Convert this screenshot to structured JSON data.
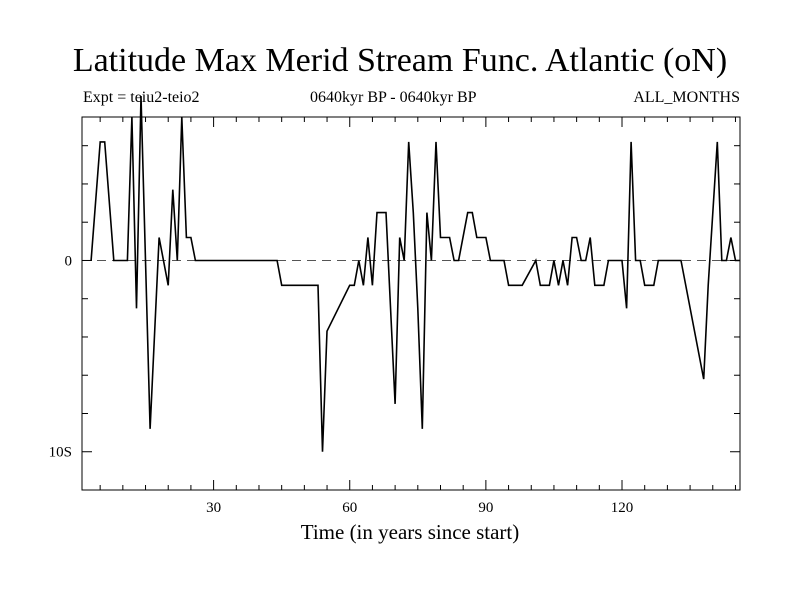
{
  "header": {
    "title": "Latitude Max Merid Stream Func. Atlantic (oN)",
    "expt": "Expt = teiu2-teio2",
    "period": "0640kyr BP - 0640kyr BP",
    "months": "ALL_MONTHS"
  },
  "chart_data": {
    "type": "line",
    "title": "Latitude Max Merid Stream Func. Atlantic (oN)",
    "subtitles": [
      "Expt = teiu2-teio2",
      "0640kyr BP - 0640kyr BP",
      "ALL_MONTHS"
    ],
    "xlabel": "Time (in years since start)",
    "ylabel": "",
    "xlim": [
      1,
      146
    ],
    "ylim": [
      -12,
      7.5
    ],
    "x_ticks": [
      30,
      60,
      90,
      120
    ],
    "x_tick_labels": [
      "30",
      "60",
      "90",
      "120"
    ],
    "y_ticks": [
      0,
      -10
    ],
    "y_tick_labels": [
      "0",
      "10S"
    ],
    "zero_line": "dashed",
    "grid": false,
    "series": [
      {
        "x": [
          3,
          5,
          6,
          8,
          11,
          12,
          13,
          14,
          15,
          16,
          18,
          20,
          21,
          22,
          23,
          24,
          25,
          26,
          44,
          45,
          53,
          54,
          55,
          60,
          61,
          62,
          63,
          64,
          65,
          66,
          67,
          68,
          70,
          71,
          72,
          73,
          74,
          75,
          76,
          77,
          78,
          79,
          80,
          81,
          82,
          83,
          84,
          86,
          87,
          88,
          89,
          90,
          91,
          93,
          94,
          95,
          97,
          98,
          101,
          102,
          103,
          104,
          105,
          106,
          107,
          108,
          109,
          110,
          111,
          112,
          113,
          114,
          115,
          116,
          117,
          118,
          119,
          120,
          121,
          122,
          123,
          124,
          125,
          126,
          127,
          128,
          129,
          130,
          131,
          132,
          133,
          138,
          139,
          141,
          142,
          143,
          144,
          145,
          146
        ],
        "y": [
          0,
          6.2,
          6.2,
          0,
          0,
          7.5,
          -2.5,
          8.6,
          0,
          -8.8,
          1.2,
          -1.3,
          3.7,
          0,
          7.5,
          1.2,
          1.2,
          0,
          0,
          -1.3,
          -1.3,
          -10,
          -3.7,
          -1.3,
          -1.3,
          0,
          -1.3,
          1.2,
          -1.3,
          2.5,
          2.5,
          2.5,
          -7.5,
          1.2,
          0,
          6.2,
          2.5,
          -2.5,
          -8.8,
          2.5,
          0,
          6.2,
          1.2,
          1.2,
          1.2,
          0,
          0,
          2.5,
          2.5,
          1.2,
          1.2,
          1.2,
          0,
          0,
          0,
          -1.3,
          -1.3,
          -1.3,
          0,
          -1.3,
          -1.3,
          -1.3,
          0,
          -1.3,
          0,
          -1.3,
          1.2,
          1.2,
          0,
          0,
          1.2,
          -1.3,
          -1.3,
          -1.3,
          0,
          0,
          0,
          0,
          -2.5,
          6.2,
          0,
          0,
          -1.3,
          -1.3,
          -1.3,
          0,
          0,
          0,
          0,
          0,
          0,
          -6.2,
          -1.3,
          6.2,
          0,
          0,
          1.2,
          0,
          0
        ]
      }
    ]
  }
}
